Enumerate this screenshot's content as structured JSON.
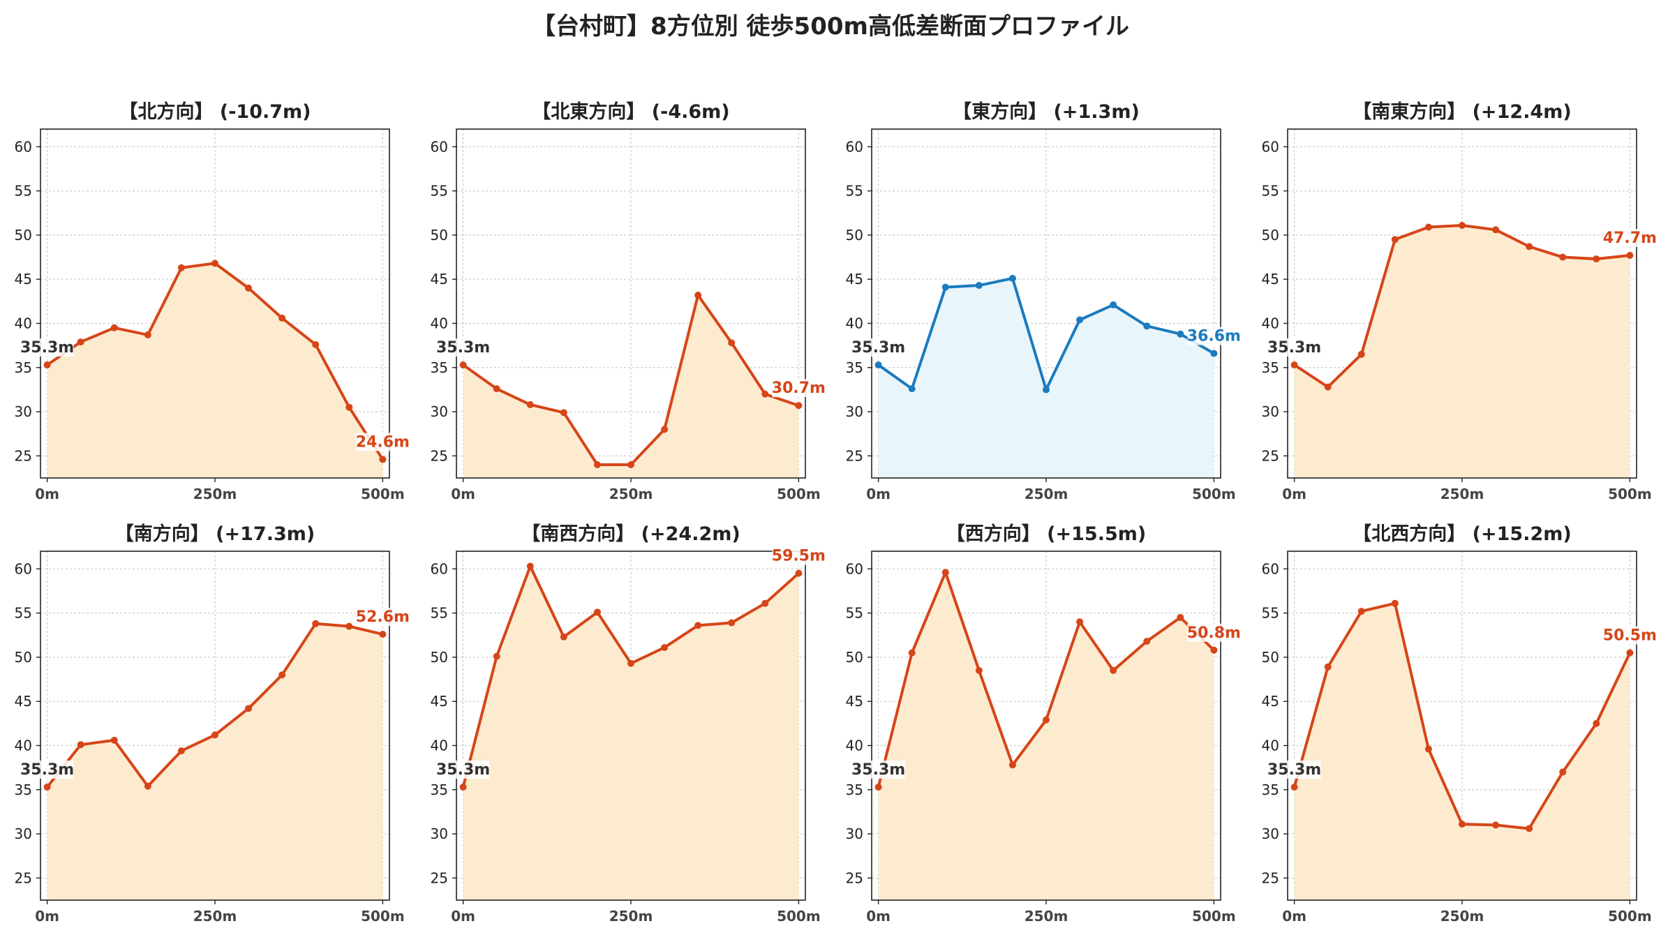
{
  "title": "【台村町】8方位別 徒歩500m高低差断面プロファイル",
  "colors": {
    "decline_line": "#d64518",
    "decline_fill": "#fdebd0",
    "flat_line": "#1a7bbf",
    "flat_fill": "#e8f5fb",
    "start_label": "#333333",
    "grid": "#cccccc",
    "axis": "#222222"
  },
  "chart_data": [
    {
      "type": "area",
      "title": "【北方向】 (-10.7m)",
      "x": [
        0,
        50,
        100,
        150,
        200,
        250,
        300,
        350,
        400,
        450,
        500
      ],
      "xticks": [
        0,
        250,
        500
      ],
      "xtick_labels": [
        "0m",
        "250m",
        "500m"
      ],
      "yticks": [
        25,
        30,
        35,
        40,
        45,
        50,
        55,
        60
      ],
      "xlim": [
        -10,
        510
      ],
      "ylim": [
        22.5,
        62
      ],
      "grid": true,
      "series": [
        {
          "values": [
            35.3,
            37.9,
            39.5,
            38.7,
            46.3,
            46.8,
            44.0,
            40.6,
            37.6,
            30.5,
            24.6
          ],
          "style": "decline"
        }
      ],
      "start_label": "35.3m",
      "end_label": "24.6m"
    },
    {
      "type": "area",
      "title": "【北東方向】 (-4.6m)",
      "x": [
        0,
        50,
        100,
        150,
        200,
        250,
        300,
        350,
        400,
        450,
        500
      ],
      "xticks": [
        0,
        250,
        500
      ],
      "xtick_labels": [
        "0m",
        "250m",
        "500m"
      ],
      "yticks": [
        25,
        30,
        35,
        40,
        45,
        50,
        55,
        60
      ],
      "xlim": [
        -10,
        510
      ],
      "ylim": [
        22.5,
        62
      ],
      "grid": true,
      "series": [
        {
          "values": [
            35.3,
            32.6,
            30.8,
            29.9,
            24.0,
            24.0,
            28.0,
            43.2,
            37.8,
            32.0,
            30.7
          ],
          "style": "decline"
        }
      ],
      "start_label": "35.3m",
      "end_label": "30.7m"
    },
    {
      "type": "area",
      "title": "【東方向】 (+1.3m)",
      "x": [
        0,
        50,
        100,
        150,
        200,
        250,
        300,
        350,
        400,
        450,
        500
      ],
      "xticks": [
        0,
        250,
        500
      ],
      "xtick_labels": [
        "0m",
        "250m",
        "500m"
      ],
      "yticks": [
        25,
        30,
        35,
        40,
        45,
        50,
        55,
        60
      ],
      "xlim": [
        -10,
        510
      ],
      "ylim": [
        22.5,
        62
      ],
      "grid": true,
      "series": [
        {
          "values": [
            35.3,
            32.6,
            44.1,
            44.3,
            45.1,
            32.5,
            40.4,
            42.1,
            39.7,
            38.8,
            36.6
          ],
          "style": "flat"
        }
      ],
      "start_label": "35.3m",
      "end_label": "36.6m"
    },
    {
      "type": "area",
      "title": "【南東方向】 (+12.4m)",
      "x": [
        0,
        50,
        100,
        150,
        200,
        250,
        300,
        350,
        400,
        450,
        500
      ],
      "xticks": [
        0,
        250,
        500
      ],
      "xtick_labels": [
        "0m",
        "250m",
        "500m"
      ],
      "yticks": [
        25,
        30,
        35,
        40,
        45,
        50,
        55,
        60
      ],
      "xlim": [
        -10,
        510
      ],
      "ylim": [
        22.5,
        62
      ],
      "grid": true,
      "series": [
        {
          "values": [
            35.3,
            32.8,
            36.5,
            49.5,
            50.9,
            51.1,
            50.6,
            48.7,
            47.5,
            47.3,
            47.7
          ],
          "style": "decline"
        }
      ],
      "start_label": "35.3m",
      "end_label": "47.7m"
    },
    {
      "type": "area",
      "title": "【南方向】 (+17.3m)",
      "x": [
        0,
        50,
        100,
        150,
        200,
        250,
        300,
        350,
        400,
        450,
        500
      ],
      "xticks": [
        0,
        250,
        500
      ],
      "xtick_labels": [
        "0m",
        "250m",
        "500m"
      ],
      "yticks": [
        25,
        30,
        35,
        40,
        45,
        50,
        55,
        60
      ],
      "xlim": [
        -10,
        510
      ],
      "ylim": [
        22.5,
        62
      ],
      "grid": true,
      "series": [
        {
          "values": [
            35.3,
            40.1,
            40.6,
            35.4,
            39.4,
            41.2,
            44.2,
            48.0,
            53.8,
            53.5,
            52.6
          ],
          "style": "decline"
        }
      ],
      "start_label": "35.3m",
      "end_label": "52.6m"
    },
    {
      "type": "area",
      "title": "【南西方向】 (+24.2m)",
      "x": [
        0,
        50,
        100,
        150,
        200,
        250,
        300,
        350,
        400,
        450,
        500
      ],
      "xticks": [
        0,
        250,
        500
      ],
      "xtick_labels": [
        "0m",
        "250m",
        "500m"
      ],
      "yticks": [
        25,
        30,
        35,
        40,
        45,
        50,
        55,
        60
      ],
      "xlim": [
        -10,
        510
      ],
      "ylim": [
        22.5,
        62
      ],
      "grid": true,
      "series": [
        {
          "values": [
            35.3,
            50.1,
            60.3,
            52.3,
            55.1,
            49.3,
            51.1,
            53.6,
            53.9,
            56.1,
            59.5
          ],
          "style": "decline"
        }
      ],
      "start_label": "35.3m",
      "end_label": "59.5m"
    },
    {
      "type": "area",
      "title": "【西方向】 (+15.5m)",
      "x": [
        0,
        50,
        100,
        150,
        200,
        250,
        300,
        350,
        400,
        450,
        500
      ],
      "xticks": [
        0,
        250,
        500
      ],
      "xtick_labels": [
        "0m",
        "250m",
        "500m"
      ],
      "yticks": [
        25,
        30,
        35,
        40,
        45,
        50,
        55,
        60
      ],
      "xlim": [
        -10,
        510
      ],
      "ylim": [
        22.5,
        62
      ],
      "grid": true,
      "series": [
        {
          "values": [
            35.3,
            50.5,
            59.6,
            48.5,
            37.8,
            42.9,
            54.0,
            48.5,
            51.8,
            54.5,
            50.8
          ],
          "style": "decline"
        }
      ],
      "start_label": "35.3m",
      "end_label": "50.8m"
    },
    {
      "type": "area",
      "title": "【北西方向】 (+15.2m)",
      "x": [
        0,
        50,
        100,
        150,
        200,
        250,
        300,
        350,
        400,
        450,
        500
      ],
      "xticks": [
        0,
        250,
        500
      ],
      "xtick_labels": [
        "0m",
        "250m",
        "500m"
      ],
      "yticks": [
        25,
        30,
        35,
        40,
        45,
        50,
        55,
        60
      ],
      "xlim": [
        -10,
        510
      ],
      "ylim": [
        22.5,
        62
      ],
      "grid": true,
      "series": [
        {
          "values": [
            35.3,
            48.9,
            55.2,
            56.1,
            39.6,
            31.1,
            31.0,
            30.6,
            37.0,
            42.5,
            50.5
          ],
          "style": "decline"
        }
      ],
      "start_label": "35.3m",
      "end_label": "50.5m"
    }
  ]
}
